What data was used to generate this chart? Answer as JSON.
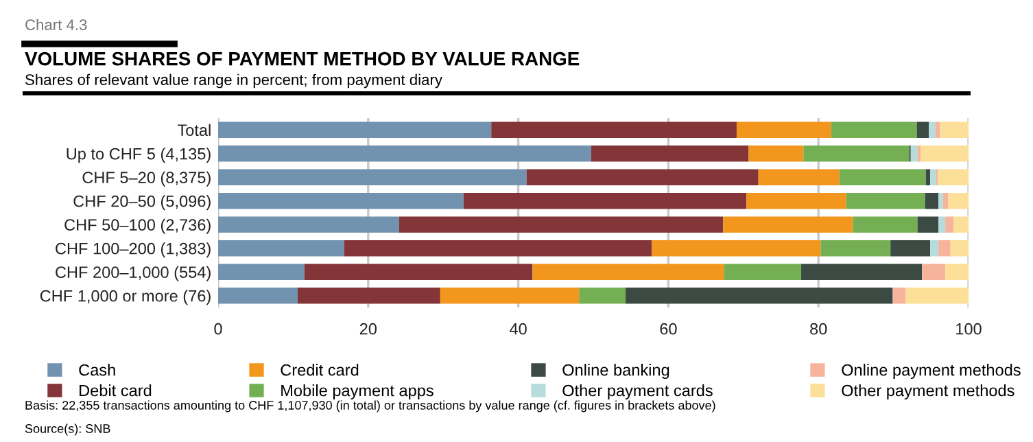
{
  "chart_data": {
    "type": "bar",
    "orientation": "horizontal",
    "stacked": true,
    "title": "VOLUME SHARES OF PAYMENT METHOD BY VALUE RANGE",
    "subtitle": "Shares of relevant value range in percent; from payment diary",
    "annotations": [
      "Chart 4.3",
      "Basis: 22,355 transactions amounting to CHF 1,107,930 (in total) or transactions by value range (cf. figures in brackets above)",
      "Source(s): SNB"
    ],
    "categories": [
      "Total",
      "Up to CHF 5 (4,135)",
      "CHF 5–20 (8,375)",
      "CHF 20–50 (5,096)",
      "CHF 50–100 (2,736)",
      "CHF 100–200 (1,383)",
      "CHF 200–1,000 (554)",
      "CHF 1,000 or more (76)"
    ],
    "series": [
      {
        "name": "Cash",
        "color": "#7193b0",
        "values": [
          36.4,
          49.7,
          41.1,
          32.7,
          24.1,
          16.8,
          11.5,
          10.6
        ]
      },
      {
        "name": "Debit card",
        "color": "#833538",
        "values": [
          32.7,
          21.0,
          30.9,
          37.7,
          43.2,
          41.0,
          30.4,
          19.0
        ]
      },
      {
        "name": "Credit card",
        "color": "#f2961e",
        "values": [
          12.6,
          7.3,
          10.8,
          13.3,
          17.3,
          22.5,
          25.5,
          18.5
        ]
      },
      {
        "name": "Mobile payment apps",
        "color": "#74b053",
        "values": [
          11.4,
          14.1,
          11.5,
          10.5,
          8.6,
          9.3,
          10.3,
          6.2
        ]
      },
      {
        "name": "Online banking",
        "color": "#3b4a43",
        "values": [
          1.6,
          0.2,
          0.6,
          1.8,
          2.8,
          5.3,
          16.1,
          35.6
        ]
      },
      {
        "name": "Other payment cards",
        "color": "#b7dcdc",
        "values": [
          0.9,
          0.9,
          0.8,
          0.6,
          0.9,
          1.1,
          0,
          0
        ]
      },
      {
        "name": "Online payment methods",
        "color": "#f6b49c",
        "values": [
          0.6,
          0.4,
          0.2,
          0.7,
          1.1,
          1.6,
          3.1,
          1.7
        ]
      },
      {
        "name": "Other payment methods",
        "color": "#fcdf98",
        "values": [
          3.8,
          6.4,
          4.1,
          2.7,
          2.0,
          2.4,
          3.1,
          8.4
        ]
      }
    ],
    "xlim": [
      0,
      100
    ],
    "xticks": [
      0,
      20,
      40,
      60,
      80,
      100
    ],
    "grid": "x",
    "legend": "bottom"
  }
}
